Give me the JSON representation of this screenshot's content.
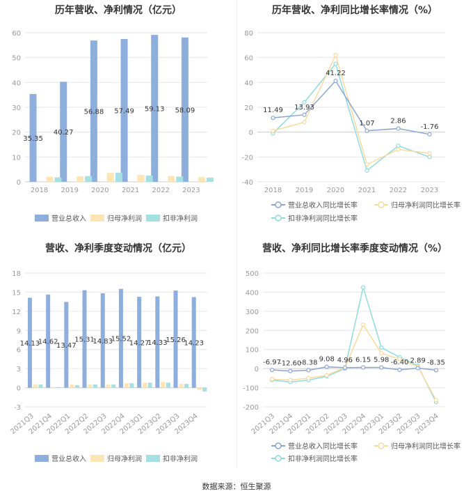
{
  "colors": {
    "revenue": "#8eaedc",
    "net_profit": "#fde5b5",
    "deducted_profit": "#a6e0e2",
    "revenue_line": "#8aa4d4",
    "net_line": "#fbd99c",
    "deducted_line": "#8cdcdc",
    "grid": "#e6e6e6",
    "axis_text": "#999999"
  },
  "source_text": "数据来源：恒生聚源",
  "chart_data": [
    {
      "type": "bar",
      "title": "历年营收、净利情况（亿元）",
      "categories": [
        "2018",
        "2019",
        "2020",
        "2021",
        "2022",
        "2023"
      ],
      "series": [
        {
          "name": "营业总收入",
          "values": [
            35.35,
            40.27,
            56.88,
            57.49,
            59.13,
            58.09
          ]
        },
        {
          "name": "归母净利润",
          "values": [
            2.0,
            2.2,
            3.6,
            2.8,
            2.3,
            1.9
          ]
        },
        {
          "name": "扣非净利润",
          "values": [
            1.8,
            2.3,
            3.7,
            2.5,
            2.1,
            1.7
          ]
        }
      ],
      "labels": [
        "35.35",
        "40.27",
        "56.88",
        "57.49",
        "59.13",
        "58.09"
      ],
      "yticks": [
        "0",
        "10",
        "20",
        "30",
        "40",
        "50",
        "60"
      ],
      "ylim": [
        0,
        60
      ]
    },
    {
      "type": "line",
      "title": "历年营收、净利同比增长率情况（%）",
      "categories": [
        "2018",
        "2019",
        "2020",
        "2021",
        "2022",
        "2023"
      ],
      "series": [
        {
          "name": "营业总收入同比增长率",
          "values": [
            11.49,
            13.93,
            41.22,
            1.07,
            2.86,
            -1.76
          ]
        },
        {
          "name": "归母净利润同比增长率",
          "values": [
            1,
            8,
            62,
            -26,
            -14,
            -17
          ]
        },
        {
          "name": "扣非净利润同比增长率",
          "values": [
            -1,
            24,
            55,
            -31,
            -11,
            -20
          ]
        }
      ],
      "labels": [
        "11.49",
        "13.93",
        "41.22",
        "1.07",
        "2.86",
        "-1.76"
      ],
      "yticks": [
        "-40",
        "-20",
        "0",
        "20",
        "40",
        "60",
        "80"
      ],
      "ylim": [
        -40,
        80
      ]
    },
    {
      "type": "bar",
      "title": "营收、净利季度变动情况（亿元）",
      "categories": [
        "2021Q3",
        "2021Q4",
        "2022Q1",
        "2022Q2",
        "2022Q3",
        "2022Q4",
        "2023Q1",
        "2023Q2",
        "2023Q3",
        "2023Q4"
      ],
      "series": [
        {
          "name": "营业总收入",
          "values": [
            14.13,
            14.62,
            13.47,
            15.31,
            14.83,
            15.52,
            14.27,
            14.33,
            15.26,
            14.23
          ]
        },
        {
          "name": "归母净利润",
          "values": [
            0.5,
            0.1,
            0.5,
            0.5,
            0.5,
            0.7,
            0.8,
            0.9,
            0.6,
            -0.4
          ]
        },
        {
          "name": "扣非净利润",
          "values": [
            0.5,
            0.1,
            0.4,
            0.5,
            0.5,
            0.7,
            0.8,
            0.8,
            0.6,
            -0.6
          ]
        }
      ],
      "labels": [
        "14.13",
        "14.62",
        "13.47",
        "15.31",
        "14.83",
        "15.52",
        "14.27",
        "14.33",
        "15.26",
        "14.23"
      ],
      "yticks": [
        "-3",
        "0",
        "3",
        "6",
        "9",
        "12",
        "15",
        "18"
      ],
      "ylim": [
        -3,
        18
      ]
    },
    {
      "type": "line",
      "title": "营收、净利同比增长率季度变动情况（%）",
      "categories": [
        "2021Q3",
        "2021Q4",
        "2022Q1",
        "2022Q2",
        "2022Q3",
        "2022Q4",
        "2023Q1",
        "2023Q2",
        "2023Q3",
        "2023Q4"
      ],
      "series": [
        {
          "name": "营业总收入同比增长率",
          "values": [
            -6.97,
            -12.6,
            -8.38,
            9.08,
            4.96,
            6.15,
            5.98,
            -6.4,
            2.89,
            -8.35
          ]
        },
        {
          "name": "归母净利润同比增长率",
          "values": [
            -55,
            -60,
            -50,
            -35,
            5,
            230,
            80,
            50,
            10,
            -165
          ]
        },
        {
          "name": "扣非净利润同比增长率",
          "values": [
            -60,
            -70,
            -60,
            -40,
            0,
            425,
            110,
            60,
            15,
            -175
          ]
        }
      ],
      "labels": [
        "-6.97",
        "-12.60",
        "-8.38",
        "9.08",
        "4.96",
        "6.15",
        "5.98",
        "-6.40",
        "2.89",
        "-8.35"
      ],
      "yticks": [
        "-200",
        "-100",
        "0",
        "100",
        "200",
        "300",
        "400",
        "500"
      ],
      "ylim": [
        -200,
        500
      ]
    }
  ]
}
